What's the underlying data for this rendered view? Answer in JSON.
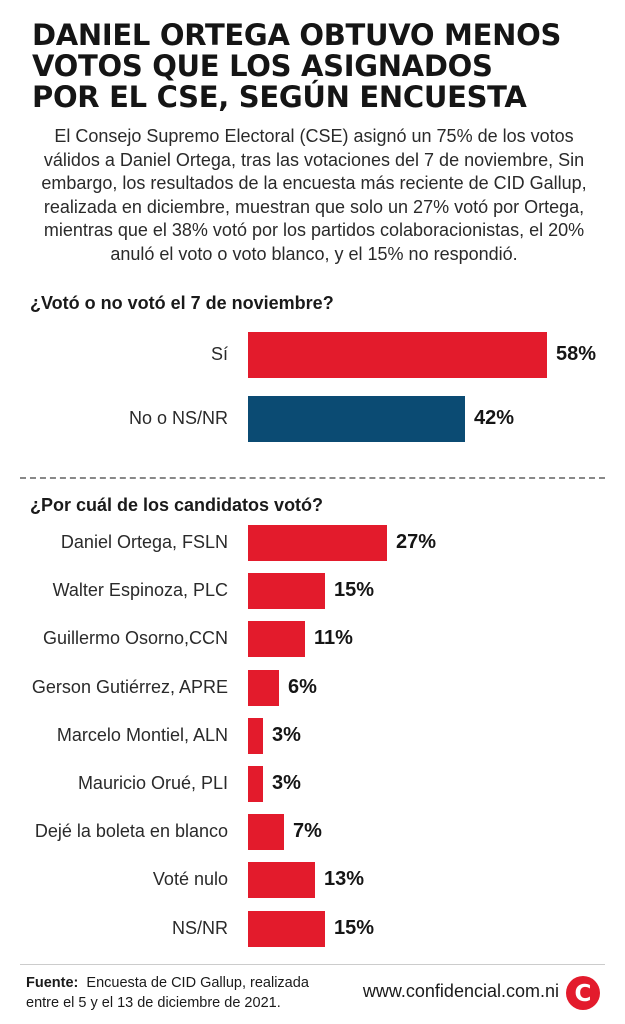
{
  "header": {
    "title_lines": [
      "DANIEL ORTEGA OBTUVO MENOS",
      "VOTOS QUE LOS ASIGNADOS",
      "POR EL CSE, SEGÚN ENCUESTA"
    ],
    "intro_lines": [
      "El Consejo Supremo Electoral (CSE) asignó un 75% de los votos",
      "válidos a Daniel Ortega, tras las votaciones del 7 de noviembre, Sin",
      "embargo, los resultados de la encuesta más reciente de CID Gallup,",
      "realizada en diciembre, muestran que solo un 27% votó por Ortega,",
      "mientras que el 38% votó por los partidos colaboracionistas, el 20%",
      "anuló el voto o voto blanco, y el 15% no respondió."
    ]
  },
  "chart_data": [
    {
      "type": "bar",
      "orientation": "horizontal",
      "title": "¿Votó o no votó el 7 de noviembre?",
      "categories": [
        "Sí",
        "No o NS/NR"
      ],
      "values": [
        58,
        42
      ],
      "value_labels": [
        "58%",
        "42%"
      ],
      "colors": [
        "#e31b2c",
        "#0b4b73"
      ],
      "xlim": [
        0,
        58
      ],
      "grid": false
    },
    {
      "type": "bar",
      "orientation": "horizontal",
      "title": "¿Por cuál de los candidatos votó?",
      "categories": [
        "Daniel Ortega, FSLN",
        "Walter Espinoza, PLC",
        "Guillermo Osorno,CCN",
        "Gerson Gutiérrez, APRE",
        "Marcelo Montiel, ALN",
        "Mauricio Orué, PLI",
        "Dejé la boleta en blanco",
        "Voté nulo",
        "NS/NR"
      ],
      "values": [
        27,
        15,
        11,
        6,
        3,
        3,
        7,
        13,
        15
      ],
      "value_labels": [
        "27%",
        "15%",
        "11%",
        "6%",
        "3%",
        "3%",
        "7%",
        "13%",
        "15%"
      ],
      "colors": [
        "#e31b2c"
      ],
      "xlim": [
        0,
        58
      ],
      "grid": false
    }
  ],
  "footer": {
    "source_label": "Fuente:",
    "source_line1": "Encuesta de CID Gallup, realizada",
    "source_line2": "entre el 5 y el 13 de diciembre de 2021.",
    "website": "www.confidencial.com.ni",
    "logo_letter": "C",
    "logo_color": "#e31b2c"
  }
}
